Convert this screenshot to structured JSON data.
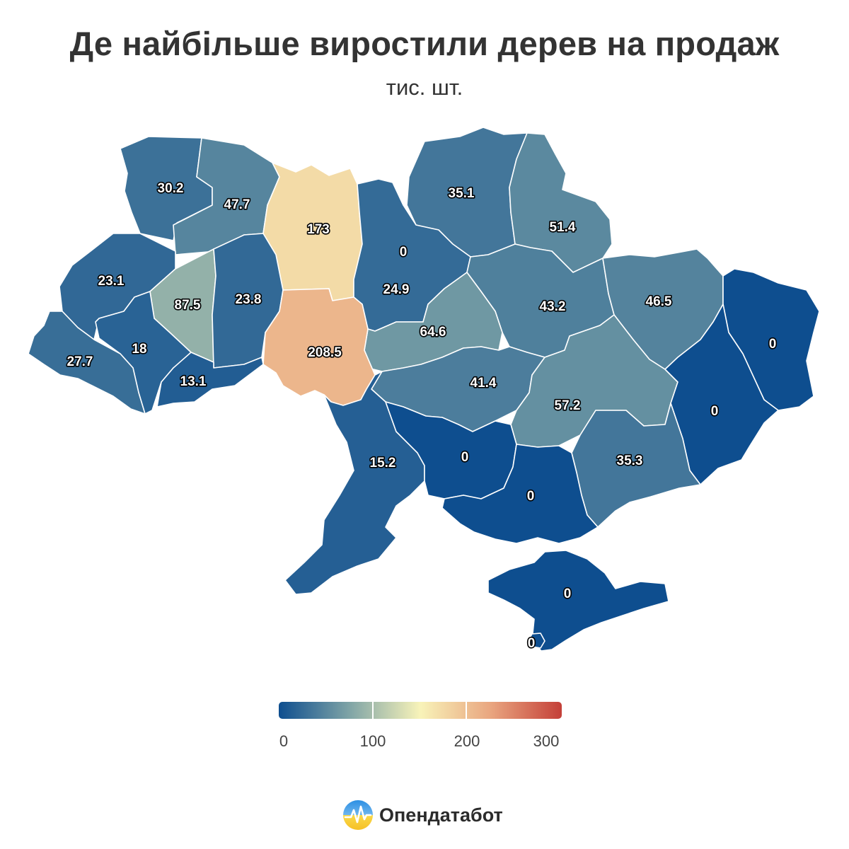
{
  "title": "Де найбільше виростили дерев на продаж",
  "subtitle": "тис. шт.",
  "legend": {
    "ticks": [
      "0",
      "100",
      "200",
      "300"
    ],
    "min": 0,
    "max": 300,
    "colors": [
      "#0e4e8f",
      "#7fa4a6",
      "#f8f3b9",
      "#e9a57f",
      "#c43f38"
    ]
  },
  "brand": {
    "name": "Опендатабот",
    "icon": "opendatabot-logo-icon"
  },
  "chart_data": {
    "type": "choropleth",
    "title": "Де найбільше виростили дерев на продаж",
    "subtitle": "тис. шт.",
    "scale": {
      "min": 0,
      "max": 300
    },
    "regions": [
      {
        "value": 30.2
      },
      {
        "value": 47.7
      },
      {
        "value": 173
      },
      {
        "value": 0
      },
      {
        "value": 35.1
      },
      {
        "value": 51.4
      },
      {
        "value": 23.1
      },
      {
        "value": 87.5
      },
      {
        "value": 23.8
      },
      {
        "value": 24.9
      },
      {
        "value": 43.2
      },
      {
        "value": 46.5
      },
      {
        "value": 64.6
      },
      {
        "value": 208.5
      },
      {
        "value": 18
      },
      {
        "value": 27.7
      },
      {
        "value": 13.1
      },
      {
        "value": 41.4
      },
      {
        "value": 57.2
      },
      {
        "value": 0
      },
      {
        "value": 0
      },
      {
        "value": 35.3
      },
      {
        "value": 15.2
      },
      {
        "value": 0
      },
      {
        "value": 0
      },
      {
        "value": 0
      },
      {
        "value": 0
      }
    ]
  }
}
